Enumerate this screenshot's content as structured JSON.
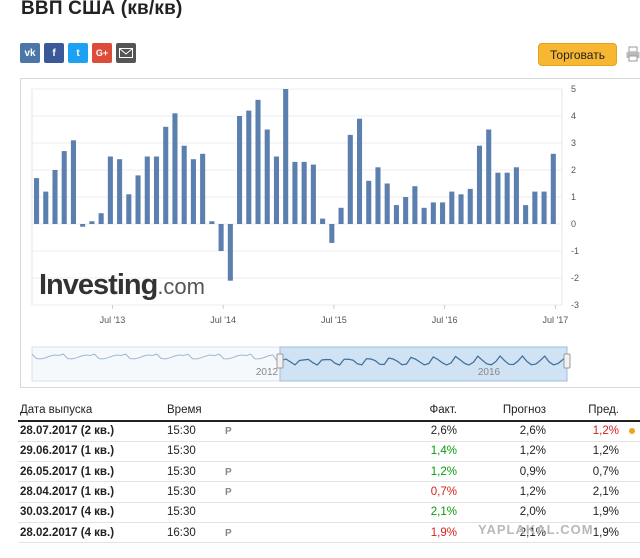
{
  "page": {
    "title": "ВВП США (кв/кв)"
  },
  "share": {
    "icons": [
      "vk-icon",
      "facebook-icon",
      "twitter-icon",
      "google-plus-icon",
      "email-icon"
    ],
    "labels": {
      "vk": "vk",
      "fb": "f",
      "tw": "t",
      "gp": "G+"
    }
  },
  "actions": {
    "trade_label": "Торговать",
    "print_icon": "print-icon"
  },
  "logo": {
    "main": "Investing",
    "suffix": ".com"
  },
  "colors": {
    "bar": "#5b7fae",
    "navigator_fill": "#cfe3f5",
    "trade": "#f7b733",
    "green": "#0a9a0a",
    "red": "#d91e18"
  },
  "chart_data": {
    "type": "bar",
    "ylim": [
      -3,
      5
    ],
    "yticks": [
      5,
      4,
      3,
      2,
      1,
      0,
      -1,
      -2,
      -3
    ],
    "xtick_labels": [
      "Jul '13",
      "Jul '14",
      "Jul '15",
      "Jul '16",
      "Jul '17"
    ],
    "values": [
      1.7,
      1.2,
      2.0,
      2.7,
      3.1,
      -0.1,
      0.1,
      0.4,
      2.5,
      2.4,
      1.1,
      1.8,
      2.5,
      2.5,
      3.6,
      4.1,
      2.9,
      2.4,
      2.6,
      0.1,
      -1.0,
      -2.1,
      4.0,
      4.2,
      4.6,
      3.5,
      2.5,
      5.0,
      2.3,
      2.3,
      2.2,
      0.2,
      -0.7,
      0.6,
      3.3,
      3.9,
      1.6,
      2.1,
      1.5,
      0.7,
      1.0,
      1.4,
      0.6,
      0.8,
      0.8,
      1.2,
      1.1,
      1.3,
      2.9,
      3.5,
      1.9,
      1.9,
      2.1,
      0.7,
      1.2,
      1.2,
      2.6
    ],
    "navigator_labels": [
      "2012",
      "2016"
    ]
  },
  "table": {
    "headers": {
      "date": "Дата выпуска",
      "time": "Время",
      "actual": "Факт.",
      "forecast": "Прогноз",
      "previous": "Пред."
    },
    "rows": [
      {
        "date": "28.07.2017 (2 кв.)",
        "time": "15:30",
        "prelim": true,
        "actual": "2,6%",
        "actual_color": "",
        "forecast": "2,6%",
        "previous": "1,2%",
        "previous_color": "red",
        "dot": true
      },
      {
        "date": "29.06.2017 (1 кв.)",
        "time": "15:30",
        "prelim": false,
        "actual": "1,4%",
        "actual_color": "green",
        "forecast": "1,2%",
        "previous": "1,2%",
        "previous_color": "",
        "dot": false
      },
      {
        "date": "26.05.2017 (1 кв.)",
        "time": "15:30",
        "prelim": true,
        "actual": "1,2%",
        "actual_color": "green",
        "forecast": "0,9%",
        "previous": "0,7%",
        "previous_color": "",
        "dot": false
      },
      {
        "date": "28.04.2017 (1 кв.)",
        "time": "15:30",
        "prelim": true,
        "actual": "0,7%",
        "actual_color": "red",
        "forecast": "1,2%",
        "previous": "2,1%",
        "previous_color": "",
        "dot": false
      },
      {
        "date": "30.03.2017 (4 кв.)",
        "time": "15:30",
        "prelim": false,
        "actual": "2,1%",
        "actual_color": "green",
        "forecast": "2,0%",
        "previous": "1,9%",
        "previous_color": "",
        "dot": false
      },
      {
        "date": "28.02.2017 (4 кв.)",
        "time": "16:30",
        "prelim": true,
        "actual": "1,9%",
        "actual_color": "red",
        "forecast": "2,1%",
        "previous": "1,9%",
        "previous_color": "",
        "dot": false
      }
    ],
    "prelim_symbol": "P"
  },
  "watermark": "YAPLAKAL.COM"
}
